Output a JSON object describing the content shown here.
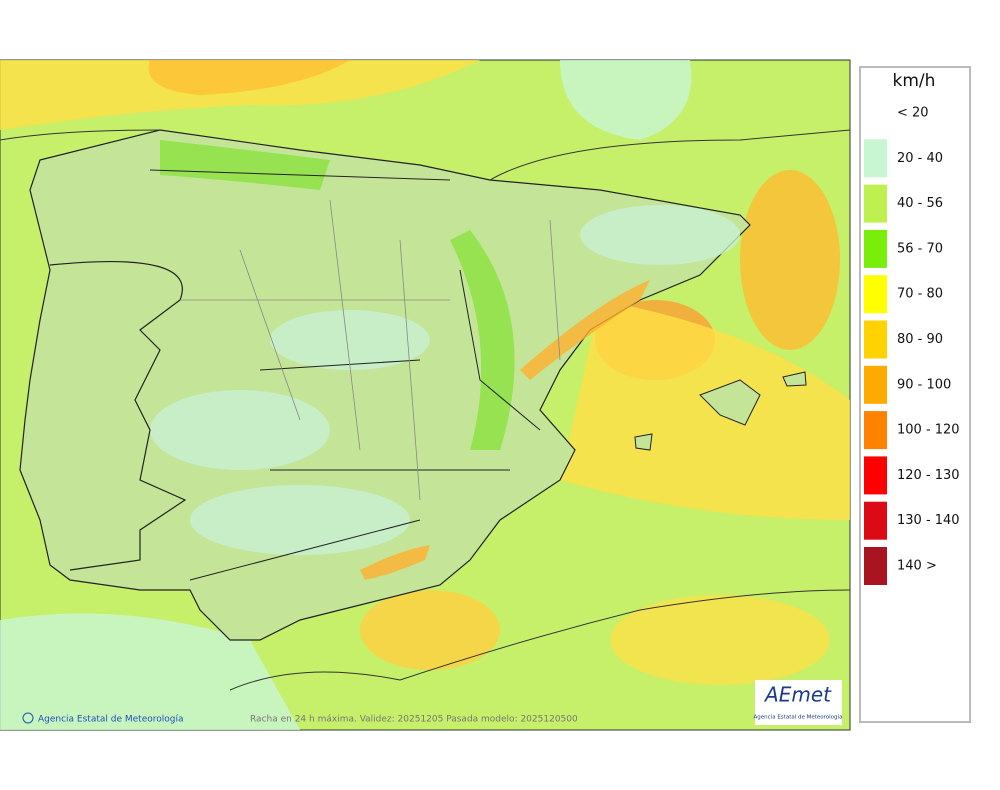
{
  "legend": {
    "unit": "km/h",
    "items": [
      {
        "label": "< 20",
        "color": "#ffffff"
      },
      {
        "label": "20 - 40",
        "color": "#c8f5d2"
      },
      {
        "label": "40 - 56",
        "color": "#bef04f"
      },
      {
        "label": "56 - 70",
        "color": "#78ee0a"
      },
      {
        "label": "70 - 80",
        "color": "#ffff00"
      },
      {
        "label": "80 - 90",
        "color": "#ffd200"
      },
      {
        "label": "90 - 100",
        "color": "#ffaa00"
      },
      {
        "label": "100 - 120",
        "color": "#ff8200"
      },
      {
        "label": "120 - 130",
        "color": "#ff0000"
      },
      {
        "label": "130 - 140",
        "color": "#dc0a14"
      },
      {
        "label": "140 >",
        "color": "#a81420"
      }
    ]
  },
  "footer": {
    "credit": "Agencia Estatal de Meteorología",
    "caption": "Racha en 24 h máxima. Validez: 20251205 Pasada modelo: 2025120500"
  },
  "logo": {
    "name": "AEmet",
    "subtitle": "Agencia Estatal de Meteorología"
  }
}
